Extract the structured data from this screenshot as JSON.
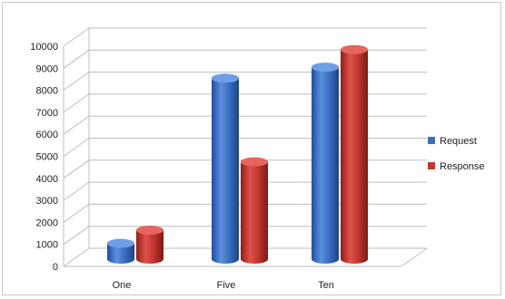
{
  "chart_data": {
    "type": "bar",
    "categories": [
      "One",
      "Five",
      "Ten"
    ],
    "series": [
      {
        "name": "Request",
        "values": [
          800,
          8300,
          8800
        ],
        "color": "#3b6fc4"
      },
      {
        "name": "Response",
        "values": [
          1400,
          4500,
          9600
        ],
        "color": "#c0392b"
      }
    ],
    "yticks": [
      "0",
      "1000",
      "2000",
      "3000",
      "4000",
      "5000",
      "6000",
      "7000",
      "8000",
      "9000",
      "10000"
    ],
    "ylim": [
      0,
      10000
    ],
    "grid": true,
    "legend_position": "right",
    "style": "3d-cylinder"
  }
}
